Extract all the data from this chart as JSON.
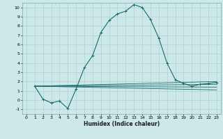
{
  "xlabel": "Humidex (Indice chaleur)",
  "ylabel": "",
  "background_color": "#cce8e8",
  "grid_color": "#b0d0d0",
  "line_color": "#1a6b6b",
  "xlim": [
    -0.5,
    23.5
  ],
  "ylim": [
    -1.5,
    10.5
  ],
  "xticks": [
    0,
    1,
    2,
    3,
    4,
    5,
    6,
    7,
    8,
    9,
    10,
    11,
    12,
    13,
    14,
    15,
    16,
    17,
    18,
    19,
    20,
    21,
    22,
    23
  ],
  "yticks": [
    -1,
    0,
    1,
    2,
    3,
    4,
    5,
    6,
    7,
    8,
    9,
    10
  ],
  "main_line": {
    "x": [
      1,
      2,
      3,
      4,
      5,
      6,
      7,
      8,
      9,
      10,
      11,
      12,
      13,
      14,
      15,
      16,
      17,
      18,
      19,
      20,
      21,
      22,
      23
    ],
    "y": [
      1.5,
      0.1,
      -0.3,
      -0.1,
      -0.9,
      1.2,
      3.5,
      4.8,
      7.3,
      8.6,
      9.3,
      9.6,
      10.3,
      10.0,
      8.7,
      6.7,
      4.0,
      2.2,
      1.8,
      1.5,
      1.7,
      1.8,
      1.9
    ]
  },
  "flat_lines": [
    {
      "x": [
        1,
        23
      ],
      "y": [
        1.5,
        2.0
      ]
    },
    {
      "x": [
        1,
        23
      ],
      "y": [
        1.5,
        1.7
      ]
    },
    {
      "x": [
        1,
        23
      ],
      "y": [
        1.5,
        1.4
      ]
    },
    {
      "x": [
        1,
        23
      ],
      "y": [
        1.5,
        1.1
      ]
    }
  ]
}
